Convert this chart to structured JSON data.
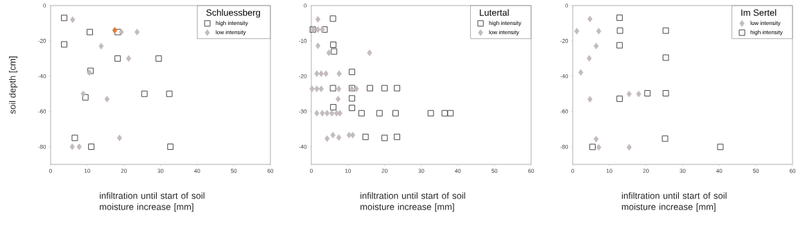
{
  "chart_data": [
    {
      "type": "scatter",
      "legend_title": "Schluessberg",
      "ylabel": "soil depth [cm]",
      "xlabel": "infiltration until start of soil moisture increase [mm]",
      "xlim": [
        0,
        60
      ],
      "xticks": [
        0,
        10,
        20,
        30,
        40,
        50,
        60
      ],
      "ylim": [
        -90,
        0
      ],
      "yticks": [
        -80,
        -60,
        -40,
        -20,
        0
      ],
      "legend": "top right",
      "series": [
        {
          "name": "high intensity",
          "color": "#333333",
          "marker": "square",
          "x": [
            3.7,
            10.7,
            18.3,
            3.7,
            18.3,
            29.5,
            10.9,
            9.5,
            25.6,
            32.4,
            6.6,
            11.1,
            32.7
          ],
          "values": [
            -7,
            -15,
            -15,
            -22,
            -30,
            -30,
            -37,
            -52,
            -50,
            -50,
            -75,
            -80,
            -80
          ]
        },
        {
          "name": "low intensity",
          "color": "#c4bcbc",
          "marker": "diamond",
          "x": [
            6.0,
            19.3,
            23.6,
            13.8,
            21.3,
            10.6,
            8.9,
            15.4,
            18.8,
            5.9,
            7.8
          ],
          "values": [
            -8,
            -15,
            -15,
            -23,
            -30,
            -38,
            -50,
            -53,
            -75,
            -80,
            -80
          ]
        },
        {
          "color": "#e07b39",
          "marker": "diamond",
          "x": [
            17.5
          ],
          "values": [
            -14
          ]
        }
      ]
    },
    {
      "type": "scatter",
      "legend_title": "Lutertal",
      "xlabel": "infiltration until start of soil moisture increase [mm]",
      "xlim": [
        0,
        60
      ],
      "xticks": [
        0,
        10,
        20,
        30,
        40,
        50,
        60
      ],
      "ylim": [
        -45,
        0
      ],
      "yticks": [
        -40,
        -30,
        -20,
        -10,
        0
      ],
      "legend": "top right",
      "series": [
        {
          "name": "high intensity",
          "color": "#333333",
          "marker": "square",
          "x": [
            5.9,
            0.4,
            3.6,
            6.0,
            6.2,
            11.1,
            5.9,
            11.1,
            16.0,
            20.0,
            23.4,
            11.1,
            11.1,
            6.0,
            13.7,
            18.6,
            23.0,
            32.6,
            36.4,
            38.0,
            14.8,
            20.0,
            23.4
          ],
          "values": [
            -3.7,
            -6.8,
            -6.8,
            -11.1,
            -13.0,
            -18.8,
            -23.4,
            -23.4,
            -23.4,
            -23.4,
            -23.4,
            -26.3,
            -29.0,
            -28.8,
            -30.5,
            -30.5,
            -30.5,
            -30.5,
            -30.5,
            -30.5,
            -37.2,
            -37.5,
            -37.2
          ]
        },
        {
          "name": "low intensity",
          "color": "#c4bcbc",
          "marker": "diamond",
          "x": [
            1.8,
            0.5,
            1.8,
            3.0,
            1.8,
            4.8,
            15.9,
            1.5,
            2.7,
            4.0,
            7.6,
            0.2,
            1.5,
            2.7,
            7.5,
            11.0,
            12.3,
            7.3,
            1.5,
            3.0,
            4.3,
            5.6,
            6.9,
            7.8,
            4.3,
            5.9,
            7.5,
            10.3,
            11.3
          ],
          "values": [
            -3.9,
            -6.8,
            -6.8,
            -6.8,
            -11.4,
            -13.4,
            -13.4,
            -19.3,
            -19.3,
            -19.3,
            -19.3,
            -23.6,
            -23.6,
            -23.6,
            -23.6,
            -23.6,
            -23.6,
            -26.5,
            -30.5,
            -30.5,
            -30.5,
            -30.5,
            -30.5,
            -30.5,
            -37.7,
            -36.7,
            -37.4,
            -36.7,
            -36.7
          ]
        }
      ]
    },
    {
      "type": "scatter",
      "legend_title": "Im Sertel",
      "xlabel": "infiltration until start of soil moisture increase [mm]",
      "xlim": [
        0,
        60
      ],
      "xticks": [
        0,
        10,
        20,
        30,
        40,
        50,
        60
      ],
      "ylim": [
        -90,
        0
      ],
      "yticks": [
        -80,
        -60,
        -40,
        -20,
        0
      ],
      "legend": "top right",
      "series": [
        {
          "name": "low intensity",
          "color": "#c4bcbc",
          "marker": "diamond",
          "x": [
            4.7,
            1.1,
            7.1,
            6.4,
            4.5,
            2.2,
            4.7,
            15.4,
            18.0,
            6.4,
            7.1,
            15.4
          ],
          "values": [
            -7.6,
            -14.5,
            -14.5,
            -22.9,
            -29.9,
            -37.9,
            -53.1,
            -50.1,
            -50.1,
            -75.7,
            -80.3,
            -80.3
          ]
        },
        {
          "name": "high intensity",
          "color": "#333333",
          "marker": "square",
          "x": [
            12.8,
            12.9,
            12.8,
            25.4,
            25.4,
            12.8,
            20.4,
            25.4,
            25.2,
            5.4,
            40.3
          ],
          "values": [
            -6.9,
            -14.2,
            -22.5,
            -14.2,
            -29.5,
            -52.8,
            -49.7,
            -49.7,
            -75.4,
            -80.1,
            -80.1
          ]
        }
      ]
    }
  ]
}
